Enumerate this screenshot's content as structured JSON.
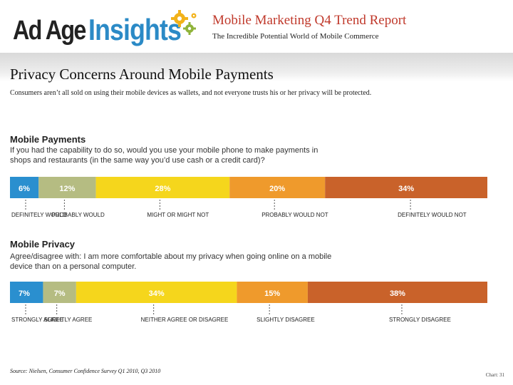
{
  "header": {
    "logo_part1": "Ad Age",
    "logo_part2": "Insights",
    "report_title": "Mobile Marketing Q4 Trend Report",
    "report_subtitle": "The Incredible Potential World of Mobile Commerce"
  },
  "section_title": "Privacy Concerns Around Mobile Payments",
  "intro": "Consumers aren’t all sold on using their mobile devices as wallets, and not everyone trusts his or her privacy will be protected.",
  "colors": {
    "c1": "#2a8fcf",
    "c2": "#b5bc82",
    "c3": "#f5d61c",
    "c4": "#ef9a2c",
    "c5": "#c9622a",
    "insights_blue": "#2b8ac6",
    "title_red": "#c0392b"
  },
  "chart_data": [
    {
      "type": "bar",
      "orientation": "horizontal-stacked-100",
      "title": "Mobile Payments",
      "question": "If you had the capability to do so, would you use your mobile phone to make payments in shops and restaurants (in the same way you’d use cash or a credit card)?",
      "segments": [
        {
          "label": "DEFINITELY WOULD",
          "value": 6,
          "display": "6%"
        },
        {
          "label": "PROBABLY WOULD",
          "value": 12,
          "display": "12%"
        },
        {
          "label": "MIGHT OR MIGHT NOT",
          "value": 28,
          "display": "28%"
        },
        {
          "label": "PROBABLY WOULD NOT",
          "value": 20,
          "display": "20%"
        },
        {
          "label": "DEFINITELY WOULD NOT",
          "value": 34,
          "display": "34%"
        }
      ]
    },
    {
      "type": "bar",
      "orientation": "horizontal-stacked-100",
      "title": "Mobile Privacy",
      "question": "Agree/disagree with: I am more comfortable about my privacy when going online on a mobile device than on a personal computer.",
      "segments": [
        {
          "label": "STRONGLY AGREE",
          "value": 7,
          "display": "7%"
        },
        {
          "label": "SLIGHTLY AGREE",
          "value": 7,
          "display": "7%"
        },
        {
          "label": "NEITHER AGREE OR DISAGREE",
          "value": 34,
          "display": "34%"
        },
        {
          "label": "SLIGHTLY DISAGREE",
          "value": 15,
          "display": "15%"
        },
        {
          "label": "STRONGLY DISAGREE",
          "value": 38,
          "display": "38%"
        }
      ]
    }
  ],
  "footer": {
    "source": "Source: Nielsen, Consumer Confidence Survey Q1 2010, Q3 2010",
    "chart_ref": "Chart: 31"
  }
}
